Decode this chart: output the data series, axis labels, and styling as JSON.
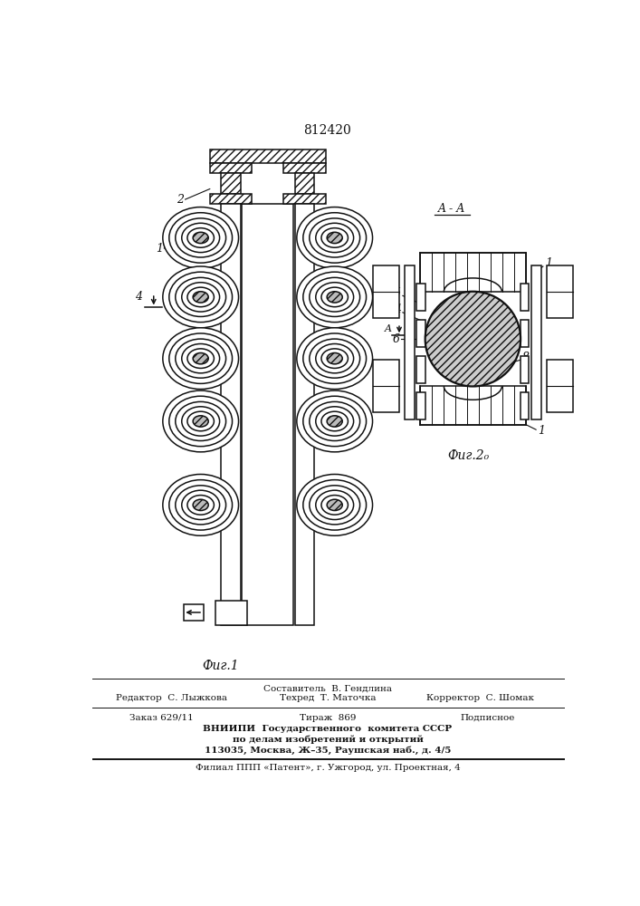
{
  "patent_number": "812420",
  "fig1_label": "Фиг.1",
  "fig2_label": "Фиг.2₀",
  "section_label": "A - A",
  "footer": {
    "line1_left": "Редактор  С. Лыжкова",
    "line1_center": "Составитель  В. Гендлина",
    "line2_center": "Техред  Т. Маточка",
    "line2_right": "Корректор  С. Шомак",
    "line3_left": "Заказ 629/11",
    "line3_center": "Тираж  869",
    "line3_right": "Подписное",
    "line4": "ВНИИПИ  Государственного  комитета СССР",
    "line5": "по делам изобретений и открытий",
    "line6": "113035, Москва, Ж–35, Раушская наб., д. 4/5",
    "line7": "Филиал ППП «Патент», г. Ужгород, ул. Проектная, 4"
  },
  "line_color": "#111111"
}
